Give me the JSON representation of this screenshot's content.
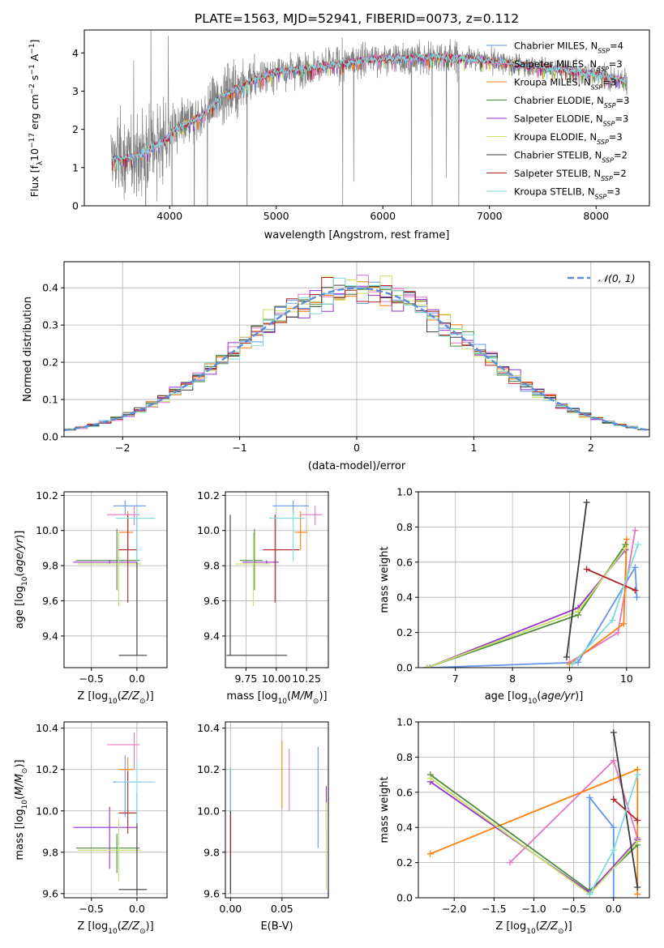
{
  "figure_title": "PLATE=1563, MJD=52941, FIBERID=0073, z=0.112",
  "colors": {
    "Chabrier MILES": "#6495ed",
    "Salpeter MILES": "#e377c2",
    "Kroupa MILES": "#ff7f0e",
    "Chabrier ELODIE": "#4a8c3a",
    "Salpeter ELODIE": "#9932cc",
    "Kroupa ELODIE": "#c8e06a",
    "Chabrier STELIB": "#3c3c3c",
    "Salpeter STELIB": "#b22222",
    "Kroupa STELIB": "#7fdbdb",
    "data": "#808080",
    "normal": "#5b8bd9"
  },
  "chart_data": [
    {
      "id": "spectrum",
      "type": "line",
      "xlabel": "wavelength [Angstrom, rest frame]",
      "ylabel": "Flux [f$_\\lambda$10$^{-17}$ erg cm$^{-2}$ s$^{-1}$ A$^{-1}$]",
      "ylabel_parts": [
        "Flux [f",
        "λ",
        "10",
        "−17",
        " erg cm",
        "−2",
        " s",
        "−1",
        " A",
        "−1",
        "]"
      ],
      "xlim": [
        3200,
        8500
      ],
      "ylim": [
        0,
        4.6
      ],
      "xticks": [
        "4000",
        "5000",
        "6000",
        "7000",
        "8000"
      ],
      "yticks": [
        "0",
        "1",
        "2",
        "3",
        "4"
      ],
      "grid": false,
      "legend_position": "top-right",
      "continuum_wavelength": [
        3450,
        3700,
        3950,
        4050,
        4300,
        4500,
        4800,
        5000,
        5300,
        5600,
        5900,
        6200,
        6500,
        6800,
        7100,
        7400,
        7700,
        8000,
        8300
      ],
      "continuum_flux": [
        1.2,
        1.3,
        1.7,
        2.0,
        2.35,
        2.9,
        3.3,
        3.5,
        3.6,
        3.72,
        3.85,
        3.85,
        3.9,
        3.85,
        3.75,
        3.65,
        3.55,
        3.45,
        3.25
      ],
      "series": [
        {
          "name": "Chabrier MILES, N",
          "sub": "SSP",
          "suffix": "=4"
        },
        {
          "name": "Salpeter MILES, N",
          "sub": "SSP",
          "suffix": "=3"
        },
        {
          "name": "Kroupa MILES, N",
          "sub": "SSP",
          "suffix": "=3"
        },
        {
          "name": "Chabrier ELODIE, N",
          "sub": "SSP",
          "suffix": "=3"
        },
        {
          "name": "Salpeter ELODIE, N",
          "sub": "SSP",
          "suffix": "=3"
        },
        {
          "name": "Kroupa ELODIE, N",
          "sub": "SSP",
          "suffix": "=3"
        },
        {
          "name": "Chabrier STELIB, N",
          "sub": "SSP",
          "suffix": "=2"
        },
        {
          "name": "Salpeter STELIB, N",
          "sub": "SSP",
          "suffix": "=2"
        },
        {
          "name": "Kroupa STELIB, N",
          "sub": "SSP",
          "suffix": "=3"
        }
      ]
    },
    {
      "id": "residuals",
      "type": "histogram",
      "xlabel": "(data-model)/error",
      "ylabel": "Normed distribution",
      "xlim": [
        -2.5,
        2.5
      ],
      "ylim": [
        0,
        0.47
      ],
      "xticks": [
        "−2",
        "−1",
        "0",
        "1",
        "2"
      ],
      "yticks": [
        "0.0",
        "0.1",
        "0.2",
        "0.3",
        "0.4"
      ],
      "grid": true,
      "legend": "𝒩(0, 1)",
      "legend_position": "top-right",
      "bin_width": 0.1,
      "bin_start": -2.5,
      "normal_mean": 0,
      "normal_sigma": 1
    },
    {
      "id": "age_vs_Z",
      "type": "errorbar",
      "xlabel": "Z [log$_{10}$(Z/Z$_\\odot$)]",
      "ylabel": "age  [log$_{10}$(age/yr)]",
      "xlim": [
        -0.8,
        0.33
      ],
      "ylim": [
        9.22,
        10.22
      ],
      "xticks": [
        "−0.5",
        "0.0"
      ],
      "xtick_values": [
        -0.5,
        0.0
      ],
      "yticks": [
        "9.4",
        "9.6",
        "9.8",
        "10.0",
        "10.2"
      ],
      "ytick_values": [
        9.4,
        9.6,
        9.8,
        10.0,
        10.2
      ],
      "grid": true,
      "points": [
        {
          "model": "Chabrier MILES",
          "x": -0.13,
          "y": 10.14,
          "xerr": [
            0.13,
            0.23
          ],
          "yerr": [
            0.05,
            0.03
          ]
        },
        {
          "model": "Salpeter MILES",
          "x": -0.03,
          "y": 10.09,
          "xerr": [
            0.3,
            0.06
          ],
          "yerr": [
            0.06,
            0.05
          ]
        },
        {
          "model": "Kroupa MILES",
          "x": -0.1,
          "y": 9.99,
          "xerr": [
            0.1,
            0.06
          ],
          "yerr": [
            0.1,
            0.12
          ]
        },
        {
          "model": "Chabrier ELODIE",
          "x": -0.22,
          "y": 9.83,
          "xerr": [
            0.45,
            0.25
          ],
          "yerr": [
            0.17,
            0.18
          ]
        },
        {
          "model": "Salpeter ELODIE",
          "x": -0.3,
          "y": 9.82,
          "xerr": [
            0.4,
            0.3
          ],
          "yerr": [
            0.01,
            0.01
          ]
        },
        {
          "model": "Kroupa ELODIE",
          "x": -0.2,
          "y": 9.81,
          "xerr": [
            0.45,
            0.25
          ],
          "yerr": [
            0.24,
            0.18
          ]
        },
        {
          "model": "Chabrier STELIB",
          "x": 0.0,
          "y": 9.29,
          "xerr": [
            0.2,
            0.11
          ],
          "yerr": [
            0.0,
            0.8
          ]
        },
        {
          "model": "Salpeter STELIB",
          "x": -0.1,
          "y": 9.89,
          "xerr": [
            0.1,
            0.1
          ],
          "yerr": [
            0.3,
            0.2
          ]
        },
        {
          "model": "Kroupa STELIB",
          "x": 0.0,
          "y": 10.07,
          "xerr": [
            0.23,
            0.2
          ],
          "yerr": [
            0.25,
            0.05
          ]
        }
      ]
    },
    {
      "id": "age_vs_mass",
      "type": "errorbar",
      "xlabel": "mass [log$_{10}$(M/M$_\\odot$)]",
      "ylabel": "",
      "xlim": [
        9.58,
        10.43
      ],
      "ylim": [
        9.22,
        10.22
      ],
      "xticks": [
        "9.75",
        "10.00",
        "10.25"
      ],
      "xtick_values": [
        9.75,
        10.0,
        10.25
      ],
      "yticks": [
        "9.4",
        "9.6",
        "9.8",
        "10.0",
        "10.2"
      ],
      "ytick_values": [
        9.4,
        9.6,
        9.8,
        10.0,
        10.2
      ],
      "grid": true,
      "points": [
        {
          "model": "Chabrier MILES",
          "x": 10.14,
          "y": 10.14,
          "xerr": [
            0.17,
            0.13
          ],
          "yerr": [
            0.05,
            0.03
          ]
        },
        {
          "model": "Salpeter MILES",
          "x": 10.32,
          "y": 10.09,
          "xerr": [
            0.12,
            0.06
          ],
          "yerr": [
            0.06,
            0.05
          ]
        },
        {
          "model": "Kroupa MILES",
          "x": 10.2,
          "y": 9.99,
          "xerr": [
            0.05,
            0.06
          ],
          "yerr": [
            0.1,
            0.12
          ]
        },
        {
          "model": "Chabrier ELODIE",
          "x": 9.82,
          "y": 9.83,
          "xerr": [
            0.12,
            0.07
          ],
          "yerr": [
            0.17,
            0.18
          ]
        },
        {
          "model": "Salpeter ELODIE",
          "x": 9.92,
          "y": 9.82,
          "xerr": [
            0.2,
            0.1
          ],
          "yerr": [
            0.01,
            0.01
          ]
        },
        {
          "model": "Kroupa ELODIE",
          "x": 9.81,
          "y": 9.81,
          "xerr": [
            0.15,
            0.15
          ],
          "yerr": [
            0.24,
            0.18
          ]
        },
        {
          "model": "Chabrier STELIB",
          "x": 9.62,
          "y": 9.29,
          "xerr": [
            0.03,
            0.47
          ],
          "yerr": [
            0.0,
            0.8
          ]
        },
        {
          "model": "Salpeter STELIB",
          "x": 9.99,
          "y": 9.89,
          "xerr": [
            0.1,
            0.2
          ],
          "yerr": [
            0.3,
            0.2
          ]
        },
        {
          "model": "Kroupa STELIB",
          "x": 10.14,
          "y": 10.07,
          "xerr": [
            0.2,
            0.1
          ],
          "yerr": [
            0.25,
            0.05
          ]
        }
      ]
    },
    {
      "id": "weight_vs_age",
      "type": "line",
      "xlabel": "age  [log$_{10}$(age/yr)]",
      "ylabel": "mass weight",
      "xlim": [
        6.35,
        10.4
      ],
      "ylim": [
        0,
        1.0
      ],
      "xticks": [
        "7",
        "8",
        "9",
        "10"
      ],
      "xtick_values": [
        7,
        8,
        9,
        10
      ],
      "yticks": [
        "0.0",
        "0.2",
        "0.4",
        "0.6",
        "0.8",
        "1.0"
      ],
      "ytick_values": [
        0,
        0.2,
        0.4,
        0.6,
        0.8,
        1.0
      ],
      "grid": true,
      "series": [
        {
          "model": "Chabrier MILES",
          "x": [
            6.55,
            9.15,
            10.15,
            10.18
          ],
          "y": [
            0.0,
            0.03,
            0.57,
            0.4
          ]
        },
        {
          "model": "Salpeter MILES",
          "x": [
            9.0,
            9.85,
            10.15
          ],
          "y": [
            0.03,
            0.2,
            0.78
          ]
        },
        {
          "model": "Kroupa MILES",
          "x": [
            9.0,
            9.95,
            10.0
          ],
          "y": [
            0.02,
            0.25,
            0.73
          ]
        },
        {
          "model": "Chabrier ELODIE",
          "x": [
            6.5,
            9.15,
            9.98
          ],
          "y": [
            0.0,
            0.3,
            0.7
          ]
        },
        {
          "model": "Salpeter ELODIE",
          "x": [
            6.5,
            9.15,
            9.98
          ],
          "y": [
            0.0,
            0.34,
            0.67
          ]
        },
        {
          "model": "Kroupa ELODIE",
          "x": [
            6.5,
            9.15,
            9.98
          ],
          "y": [
            0.0,
            0.32,
            0.68
          ]
        },
        {
          "model": "Chabrier STELIB",
          "x": [
            8.95,
            9.3
          ],
          "y": [
            0.06,
            0.94
          ]
        },
        {
          "model": "Salpeter STELIB",
          "x": [
            9.3,
            10.15
          ],
          "y": [
            0.56,
            0.44
          ]
        },
        {
          "model": "Kroupa STELIB",
          "x": [
            9.05,
            9.75,
            10.2
          ],
          "y": [
            0.02,
            0.27,
            0.7
          ]
        }
      ]
    },
    {
      "id": "mass_vs_Z",
      "type": "errorbar",
      "xlabel": "Z [log$_{10}$(Z/Z$_\\odot$)]",
      "ylabel": "mass [log$_{10}$(M/M$_\\odot$)]",
      "xlim": [
        -0.8,
        0.33
      ],
      "ylim": [
        9.58,
        10.43
      ],
      "xticks": [
        "−0.5",
        "0.0"
      ],
      "xtick_values": [
        -0.5,
        0.0
      ],
      "yticks": [
        "9.6",
        "9.8",
        "10.0",
        "10.2",
        "10.4"
      ],
      "ytick_values": [
        9.6,
        9.8,
        10.0,
        10.2,
        10.4
      ],
      "grid": true,
      "points": [
        {
          "model": "Chabrier MILES",
          "x": -0.13,
          "y": 10.14,
          "xerr": [
            0.13,
            0.23
          ],
          "yerr": [
            0.17,
            0.13
          ]
        },
        {
          "model": "Salpeter MILES",
          "x": -0.03,
          "y": 10.32,
          "xerr": [
            0.3,
            0.06
          ],
          "yerr": [
            0.12,
            0.06
          ]
        },
        {
          "model": "Kroupa MILES",
          "x": -0.1,
          "y": 10.2,
          "xerr": [
            0.1,
            0.06
          ],
          "yerr": [
            0.05,
            0.06
          ]
        },
        {
          "model": "Chabrier ELODIE",
          "x": -0.22,
          "y": 9.82,
          "xerr": [
            0.45,
            0.25
          ],
          "yerr": [
            0.12,
            0.07
          ]
        },
        {
          "model": "Salpeter ELODIE",
          "x": -0.3,
          "y": 9.92,
          "xerr": [
            0.4,
            0.3
          ],
          "yerr": [
            0.2,
            0.1
          ]
        },
        {
          "model": "Kroupa ELODIE",
          "x": -0.2,
          "y": 9.81,
          "xerr": [
            0.45,
            0.25
          ],
          "yerr": [
            0.15,
            0.15
          ]
        },
        {
          "model": "Chabrier STELIB",
          "x": 0.0,
          "y": 9.62,
          "xerr": [
            0.2,
            0.11
          ],
          "yerr": [
            0.03,
            0.47
          ]
        },
        {
          "model": "Salpeter STELIB",
          "x": -0.1,
          "y": 9.99,
          "xerr": [
            0.1,
            0.1
          ],
          "yerr": [
            0.1,
            0.2
          ]
        },
        {
          "model": "Kroupa STELIB",
          "x": 0.0,
          "y": 10.14,
          "xerr": [
            0.23,
            0.2
          ],
          "yerr": [
            0.2,
            0.1
          ]
        }
      ]
    },
    {
      "id": "mass_vs_ebv",
      "type": "errorbar",
      "xlabel": "E(B-V)",
      "ylabel": "",
      "xlim": [
        -0.005,
        0.095
      ],
      "ylim": [
        9.58,
        10.43
      ],
      "xticks": [
        "0.00",
        "0.05"
      ],
      "xtick_values": [
        0.0,
        0.05
      ],
      "yticks": [
        "9.6",
        "9.8",
        "10.0",
        "10.2",
        "10.4"
      ],
      "ytick_values": [
        9.6,
        9.8,
        10.0,
        10.2,
        10.4
      ],
      "grid": true,
      "points": [
        {
          "model": "Chabrier MILES",
          "x": 0.085,
          "y": 10.05,
          "xerr": [
            0,
            0
          ],
          "yerr": [
            0.23,
            0.26
          ]
        },
        {
          "model": "Salpeter MILES",
          "x": 0.057,
          "y": 10.13,
          "xerr": [
            0,
            0
          ],
          "yerr": [
            0.13,
            0.17
          ]
        },
        {
          "model": "Kroupa MILES",
          "x": 0.05,
          "y": 10.15,
          "xerr": [
            0,
            0
          ],
          "yerr": [
            0.14,
            0.19
          ]
        },
        {
          "model": "Chabrier ELODIE",
          "x": 0.0,
          "y": 10.0,
          "xerr": [
            0,
            0
          ],
          "yerr": [
            0.4,
            0.21
          ]
        },
        {
          "model": "Salpeter ELODIE",
          "x": 0.093,
          "y": 10.0,
          "xerr": [
            0,
            0
          ],
          "yerr": [
            0.1,
            0.12
          ]
        },
        {
          "model": "Kroupa ELODIE",
          "x": 0.093,
          "y": 9.83,
          "xerr": [
            0,
            0
          ],
          "yerr": [
            0.21,
            0.21
          ]
        },
        {
          "model": "Chabrier STELIB",
          "x": 0.0,
          "y": 9.95,
          "xerr": [
            0,
            0
          ],
          "yerr": [
            0.35,
            0.25
          ]
        },
        {
          "model": "Salpeter STELIB",
          "x": 0.0,
          "y": 9.87,
          "xerr": [
            0,
            0
          ],
          "yerr": [
            0.09,
            0.11
          ]
        },
        {
          "model": "Kroupa STELIB",
          "x": 0.0,
          "y": 10.1,
          "xerr": [
            0,
            0
          ],
          "yerr": [
            0.1,
            0.11
          ]
        }
      ]
    },
    {
      "id": "weight_vs_Z",
      "type": "line",
      "xlabel": "Z [log$_{10}$(Z/Z$_\\odot$)]",
      "ylabel": "mass weight",
      "xlim": [
        -2.45,
        0.45
      ],
      "ylim": [
        0,
        1.0
      ],
      "xticks": [
        "−2.0",
        "−1.5",
        "−1.0",
        "−0.5",
        "0.0"
      ],
      "xtick_values": [
        -2.0,
        -1.5,
        -1.0,
        -0.5,
        0.0
      ],
      "yticks": [
        "0.0",
        "0.2",
        "0.4",
        "0.6",
        "0.8",
        "1.0"
      ],
      "ytick_values": [
        0,
        0.2,
        0.4,
        0.6,
        0.8,
        1.0
      ],
      "grid": true,
      "series": [
        {
          "model": "Chabrier MILES",
          "x": [
            -0.3,
            -0.3,
            0.0,
            0.0
          ],
          "y": [
            0.03,
            0.57,
            0.4,
            0.0
          ]
        },
        {
          "model": "Salpeter MILES",
          "x": [
            -1.3,
            0.0,
            0.3
          ],
          "y": [
            0.2,
            0.78,
            0.34
          ]
        },
        {
          "model": "Kroupa MILES",
          "x": [
            -2.3,
            0.3,
            0.3
          ],
          "y": [
            0.25,
            0.73,
            0.02
          ]
        },
        {
          "model": "Chabrier ELODIE",
          "x": [
            -2.3,
            -0.3,
            0.3
          ],
          "y": [
            0.7,
            0.04,
            0.3
          ]
        },
        {
          "model": "Salpeter ELODIE",
          "x": [
            -2.3,
            -0.3,
            0.3
          ],
          "y": [
            0.66,
            0.03,
            0.33
          ]
        },
        {
          "model": "Kroupa ELODIE",
          "x": [
            -2.3,
            -0.3,
            0.3
          ],
          "y": [
            0.68,
            0.02,
            0.32
          ]
        },
        {
          "model": "Chabrier STELIB",
          "x": [
            0.0,
            0.3
          ],
          "y": [
            0.94,
            0.06
          ]
        },
        {
          "model": "Salpeter STELIB",
          "x": [
            0.0,
            0.3
          ],
          "y": [
            0.56,
            0.44
          ]
        },
        {
          "model": "Kroupa STELIB",
          "x": [
            -0.3,
            0.0,
            0.3
          ],
          "y": [
            0.02,
            0.27,
            0.7
          ]
        }
      ]
    }
  ]
}
